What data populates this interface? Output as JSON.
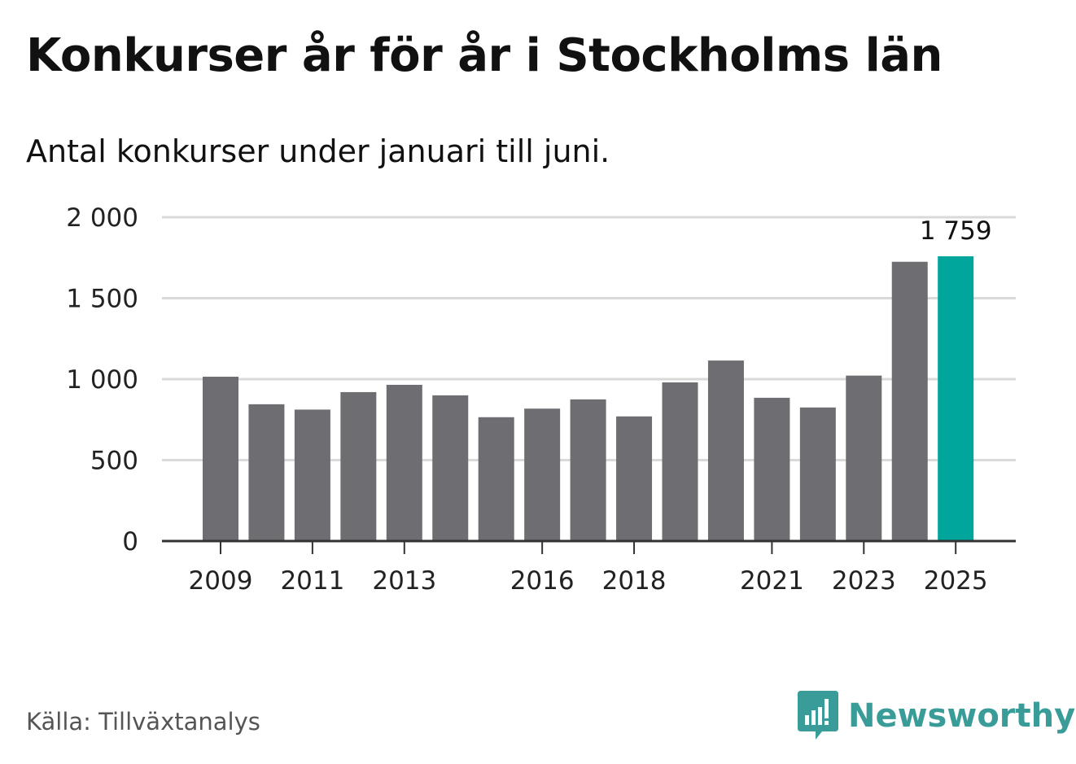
{
  "title": "Konkurser år för år i Stockholms län",
  "subtitle": "Antal konkurser under januari till juni.",
  "source": "Källa: Tillväxtanalys",
  "brand": {
    "name": "Newsworthy",
    "icon": "newsworthy-logo-icon",
    "color": "#3a9c98"
  },
  "colors": {
    "bar": "#6e6d72",
    "highlight": "#00a69c",
    "grid": "#d9d9d9",
    "axis": "#333333"
  },
  "chart_data": {
    "type": "bar",
    "categories": [
      "2009",
      "2010",
      "2011",
      "2012",
      "2013",
      "2014",
      "2015",
      "2016",
      "2017",
      "2018",
      "2019",
      "2020",
      "2021",
      "2022",
      "2023",
      "2024",
      "2025"
    ],
    "values": [
      1015,
      845,
      812,
      920,
      965,
      900,
      765,
      818,
      875,
      770,
      980,
      1115,
      885,
      825,
      1022,
      1725,
      1759
    ],
    "highlight_index": 16,
    "data_labels": [
      {
        "index": 16,
        "text": "1 759"
      }
    ],
    "xtick_labels": [
      {
        "index": 0,
        "text": "2009"
      },
      {
        "index": 2,
        "text": "2011"
      },
      {
        "index": 4,
        "text": "2013"
      },
      {
        "index": 7,
        "text": "2016"
      },
      {
        "index": 9,
        "text": "2018"
      },
      {
        "index": 12,
        "text": "2021"
      },
      {
        "index": 14,
        "text": "2023"
      },
      {
        "index": 16,
        "text": "2025"
      }
    ],
    "yticks": [
      {
        "value": 0,
        "text": "0"
      },
      {
        "value": 500,
        "text": "500"
      },
      {
        "value": 1000,
        "text": "1 000"
      },
      {
        "value": 1500,
        "text": "1 500"
      },
      {
        "value": 2000,
        "text": "2 000"
      }
    ],
    "ylim": [
      0,
      2000
    ],
    "grid": true,
    "legend": "none"
  }
}
